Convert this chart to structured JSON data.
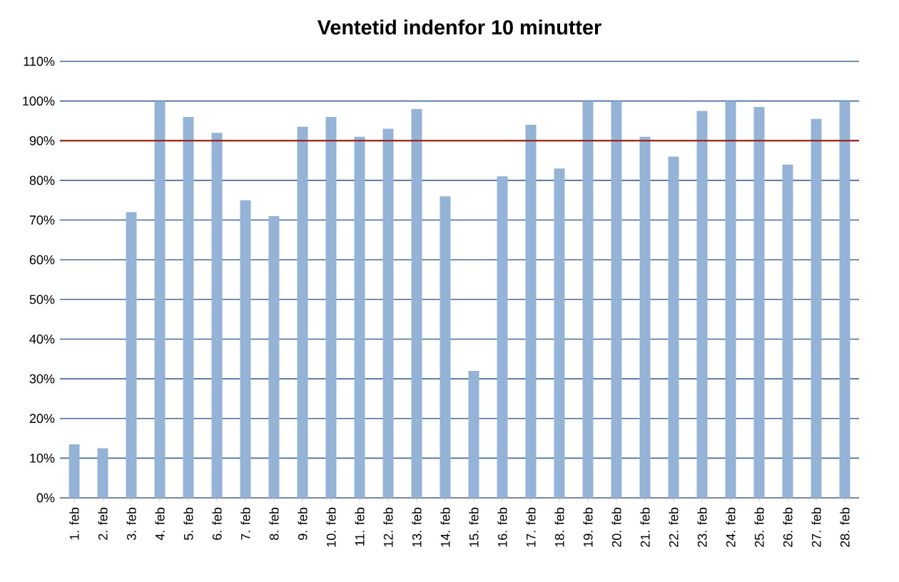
{
  "chart_data": {
    "type": "bar",
    "title": "Ventetid indenfor 10 minutter",
    "categories": [
      "1. feb",
      "2. feb",
      "3. feb",
      "4. feb",
      "5. feb",
      "6. feb",
      "7. feb",
      "8. feb",
      "9. feb",
      "10. feb",
      "11. feb",
      "12. feb",
      "13. feb",
      "14. feb",
      "15. feb",
      "16. feb",
      "17. feb",
      "18. feb",
      "19. feb",
      "20. feb",
      "21. feb",
      "22. feb",
      "23. feb",
      "24. feb",
      "25. feb",
      "26. feb",
      "27. feb",
      "28. feb"
    ],
    "values": [
      13.5,
      12.5,
      72,
      100,
      96,
      92,
      75,
      71,
      93.5,
      96,
      91,
      93,
      98,
      76,
      32,
      81,
      94,
      83,
      100,
      100,
      91,
      86,
      97.5,
      100,
      98.5,
      84,
      95.5,
      100
    ],
    "color": "#95b3d7",
    "ylim": [
      0,
      110
    ],
    "yticks": [
      {
        "value": 0,
        "label": "0%"
      },
      {
        "value": 10,
        "label": "10%"
      },
      {
        "value": 20,
        "label": "20%"
      },
      {
        "value": 30,
        "label": "30%"
      },
      {
        "value": 40,
        "label": "40%"
      },
      {
        "value": 50,
        "label": "50%"
      },
      {
        "value": 60,
        "label": "60%"
      },
      {
        "value": 70,
        "label": "70%"
      },
      {
        "value": 80,
        "label": "80%"
      },
      {
        "value": 90,
        "label": "90%"
      },
      {
        "value": 100,
        "label": "100%"
      },
      {
        "value": 110,
        "label": "110%"
      }
    ],
    "grid": "y",
    "ref_lines": [
      {
        "axis": "y",
        "value": 90,
        "color": "#9b2d24"
      }
    ]
  }
}
